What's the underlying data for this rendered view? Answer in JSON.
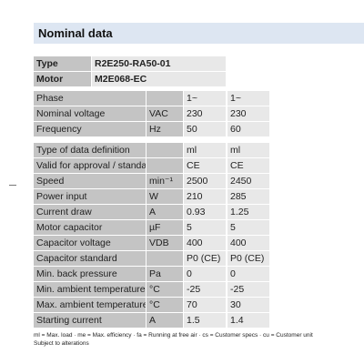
{
  "header": {
    "title": "Nominal data"
  },
  "type_table": {
    "rows": [
      [
        "Type",
        "R2E250-RA50-01"
      ],
      [
        "Motor",
        "M2E068-EC"
      ]
    ]
  },
  "table": {
    "groups": [
      [
        [
          "Phase",
          null,
          "1~",
          "1~"
        ],
        [
          "Nominal voltage",
          "VAC",
          "230",
          "230"
        ],
        [
          "Frequency",
          "Hz",
          "50",
          "60"
        ]
      ],
      [
        [
          "Type of data definition",
          null,
          "ml",
          "ml"
        ],
        [
          "Valid for approval / standard",
          null,
          "CE",
          "CE"
        ],
        [
          "Speed",
          "min⁻¹",
          "2500",
          "2450"
        ],
        [
          "Power input",
          "W",
          "210",
          "285"
        ],
        [
          "Current draw",
          "A",
          "0.93",
          "1.25"
        ],
        [
          "Motor capacitor",
          "µF",
          "5",
          "5"
        ],
        [
          "Capacitor voltage",
          "VDB",
          "400",
          "400"
        ],
        [
          "Capacitor standard",
          null,
          "P0 (CE)",
          "P0 (CE)"
        ],
        [
          "Min. back pressure",
          "Pa",
          "0",
          "0"
        ],
        [
          "Min. ambient temperature",
          "°C",
          "-25",
          "-25"
        ],
        [
          "Max. ambient temperature",
          "°C",
          "70",
          "30"
        ],
        [
          "Starting current",
          "A",
          "1.5",
          "1.4"
        ]
      ]
    ]
  },
  "footer": {
    "notes": "ml = Max. load · me = Max. efficiency · fa = Running at free air · cs = Customer specs · cu = Customer unit",
    "disclaimer": "Subject to alterations"
  }
}
